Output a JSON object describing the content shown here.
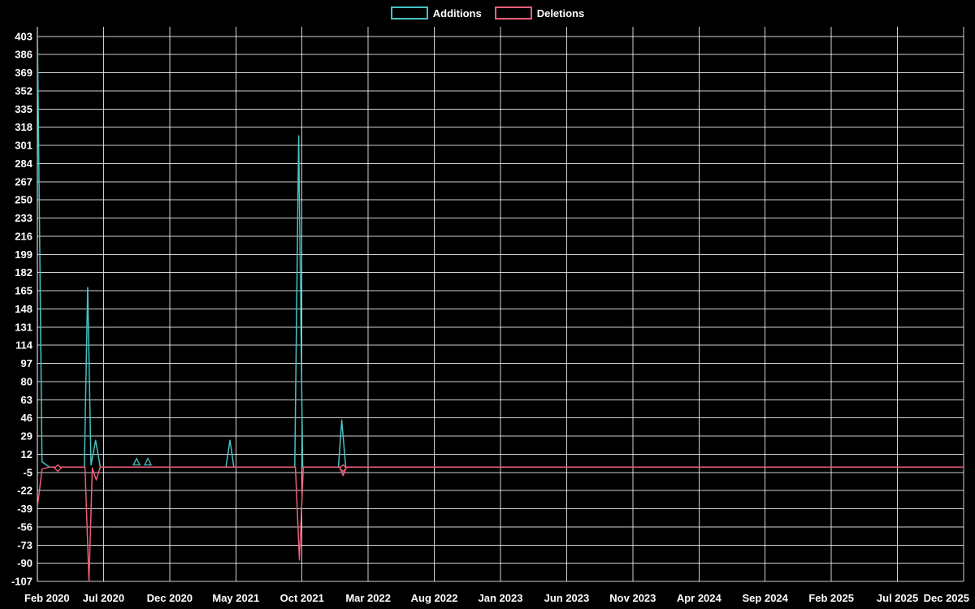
{
  "chart_data": {
    "type": "line",
    "title": "",
    "legend_position": "top-center",
    "grid": true,
    "background_color": "#000000",
    "grid_color": "#ffffff",
    "text_color": "#ffffff",
    "x_axis_label": "",
    "y_axis_label": "",
    "x_tick_labels": [
      "Feb 2020",
      "Jul 2020",
      "Dec 2020",
      "May 2021",
      "Oct 2021",
      "Mar 2022",
      "Aug 2022",
      "Jan 2023",
      "Jun 2023",
      "Nov 2023",
      "Apr 2024",
      "Sep 2024",
      "Feb 2025",
      "Jul 2025",
      "Dec 2025"
    ],
    "x_tick_months": [
      0,
      5,
      10,
      15,
      20,
      25,
      30,
      35,
      40,
      45,
      50,
      55,
      60,
      65,
      70
    ],
    "y_ticks": [
      403,
      386,
      369,
      352,
      335,
      318,
      301,
      284,
      267,
      250,
      233,
      216,
      199,
      182,
      165,
      148,
      131,
      114,
      97,
      80,
      63,
      46,
      29,
      12,
      -5,
      -22,
      -39,
      -56,
      -73,
      -90,
      -107
    ],
    "y_range": [
      -107,
      412
    ],
    "x_range_months": [
      0,
      70
    ],
    "series": [
      {
        "name": "Additions",
        "color": "#46c3c3",
        "points": [
          [
            0,
            412
          ],
          [
            0.35,
            5
          ],
          [
            0.9,
            0
          ],
          [
            3.55,
            0
          ],
          [
            3.8,
            168
          ],
          [
            4.05,
            2
          ],
          [
            4.4,
            25
          ],
          [
            4.75,
            0
          ],
          [
            14.25,
            0
          ],
          [
            14.55,
            25
          ],
          [
            14.85,
            0
          ],
          [
            19.45,
            0
          ],
          [
            19.75,
            310
          ],
          [
            20.05,
            0
          ],
          [
            22.75,
            0
          ],
          [
            23.0,
            44
          ],
          [
            23.3,
            0
          ],
          [
            70,
            0
          ]
        ],
        "markers": [
          {
            "month": 7.5,
            "value": 5,
            "shape": "triangle"
          },
          {
            "month": 8.35,
            "value": 5,
            "shape": "triangle"
          }
        ]
      },
      {
        "name": "Deletions",
        "color": "#ec5f7a",
        "points": [
          [
            0,
            -38
          ],
          [
            0.35,
            -2
          ],
          [
            0.9,
            0
          ],
          [
            3.6,
            0
          ],
          [
            3.9,
            -107
          ],
          [
            4.15,
            -1
          ],
          [
            4.45,
            -12
          ],
          [
            4.75,
            0
          ],
          [
            19.5,
            0
          ],
          [
            19.8,
            -87
          ],
          [
            20.1,
            0
          ],
          [
            22.85,
            0
          ],
          [
            23.1,
            -8
          ],
          [
            23.35,
            0
          ],
          [
            70,
            0
          ]
        ],
        "markers": [
          {
            "month": 1.55,
            "value": -1,
            "shape": "diamond"
          },
          {
            "month": 23.1,
            "value": -1,
            "shape": "diamond"
          }
        ]
      }
    ]
  }
}
